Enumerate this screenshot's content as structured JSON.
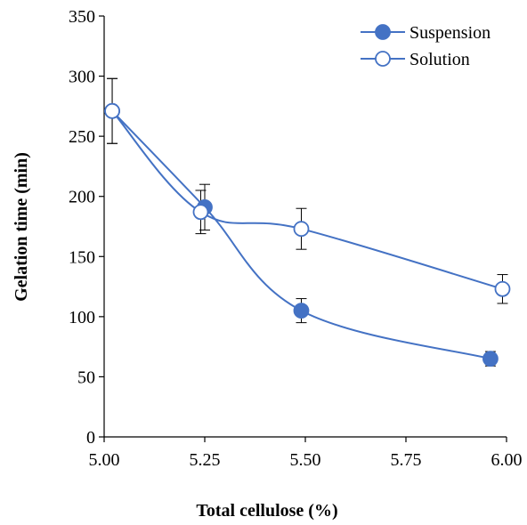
{
  "chart_data": {
    "type": "line",
    "title": "",
    "xlabel": "Total cellulose (%)",
    "ylabel": "Gelation time (min)",
    "xlim": [
      5.0,
      6.0
    ],
    "ylim": [
      0,
      350
    ],
    "xticks": [
      "5.00",
      "5.25",
      "5.50",
      "5.75",
      "6.00"
    ],
    "yticks": [
      "0",
      "50",
      "100",
      "150",
      "200",
      "250",
      "300",
      "350"
    ],
    "grid": false,
    "legend_position": "top-right",
    "smooth": true,
    "series": [
      {
        "name": "Suspension",
        "marker": "filled-circle",
        "color": "#4472C4",
        "x": [
          5.02,
          5.25,
          5.49,
          5.96
        ],
        "y": [
          271,
          191,
          105,
          65
        ],
        "err": [
          27,
          19,
          10,
          6
        ]
      },
      {
        "name": "Solution",
        "marker": "open-circle",
        "color": "#4472C4",
        "x": [
          5.02,
          5.24,
          5.49,
          5.99
        ],
        "y": [
          271,
          187,
          173,
          123
        ],
        "err": [
          27,
          18,
          17,
          12
        ]
      }
    ]
  }
}
